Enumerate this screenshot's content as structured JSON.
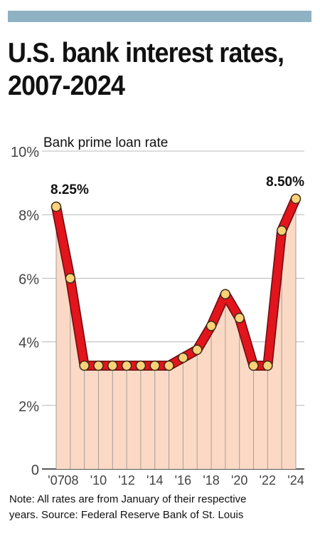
{
  "title_lines": [
    "U.S. bank interest rates,",
    "2007-2024"
  ],
  "note_lines": [
    "Note: All rates are from January of their respective",
    "years. Source: Federal Reserve Bank of St. Louis"
  ],
  "colors": {
    "top_bar": "#8fb1c4",
    "line": "#e2141c",
    "fill": "#fbd9c5",
    "marker": "#fbd27a",
    "grid": "#b8b8b8"
  },
  "chart_data": {
    "type": "line",
    "subtitle": "Bank prime loan rate",
    "ylim": [
      0,
      10
    ],
    "y_ticks": [
      {
        "value": 0,
        "label": "0"
      },
      {
        "value": 2,
        "label": "2%"
      },
      {
        "value": 4,
        "label": "4%"
      },
      {
        "value": 6,
        "label": "6%"
      },
      {
        "value": 8,
        "label": "8%"
      },
      {
        "value": 10,
        "label": "10%"
      }
    ],
    "x": [
      2007,
      2008,
      2009,
      2010,
      2011,
      2012,
      2013,
      2014,
      2015,
      2016,
      2017,
      2018,
      2019,
      2020,
      2021,
      2022,
      2023,
      2024
    ],
    "x_ticks": [
      {
        "value": 2007,
        "label": "'07"
      },
      {
        "value": 2008,
        "label": "'08"
      },
      {
        "value": 2010,
        "label": "'10"
      },
      {
        "value": 2012,
        "label": "'12"
      },
      {
        "value": 2014,
        "label": "'14"
      },
      {
        "value": 2016,
        "label": "'16"
      },
      {
        "value": 2018,
        "label": "'18"
      },
      {
        "value": 2020,
        "label": "'20"
      },
      {
        "value": 2022,
        "label": "'22"
      },
      {
        "value": 2024,
        "label": "'24"
      }
    ],
    "values": [
      8.25,
      6.0,
      3.25,
      3.25,
      3.25,
      3.25,
      3.25,
      3.25,
      3.25,
      3.5,
      3.75,
      4.5,
      5.5,
      4.75,
      3.25,
      3.25,
      7.5,
      8.5
    ],
    "annotations": [
      {
        "x": 2007,
        "value": 8.25,
        "label": "8.25%"
      },
      {
        "x": 2024,
        "value": 8.5,
        "label": "8.50%"
      }
    ],
    "grid": true
  }
}
